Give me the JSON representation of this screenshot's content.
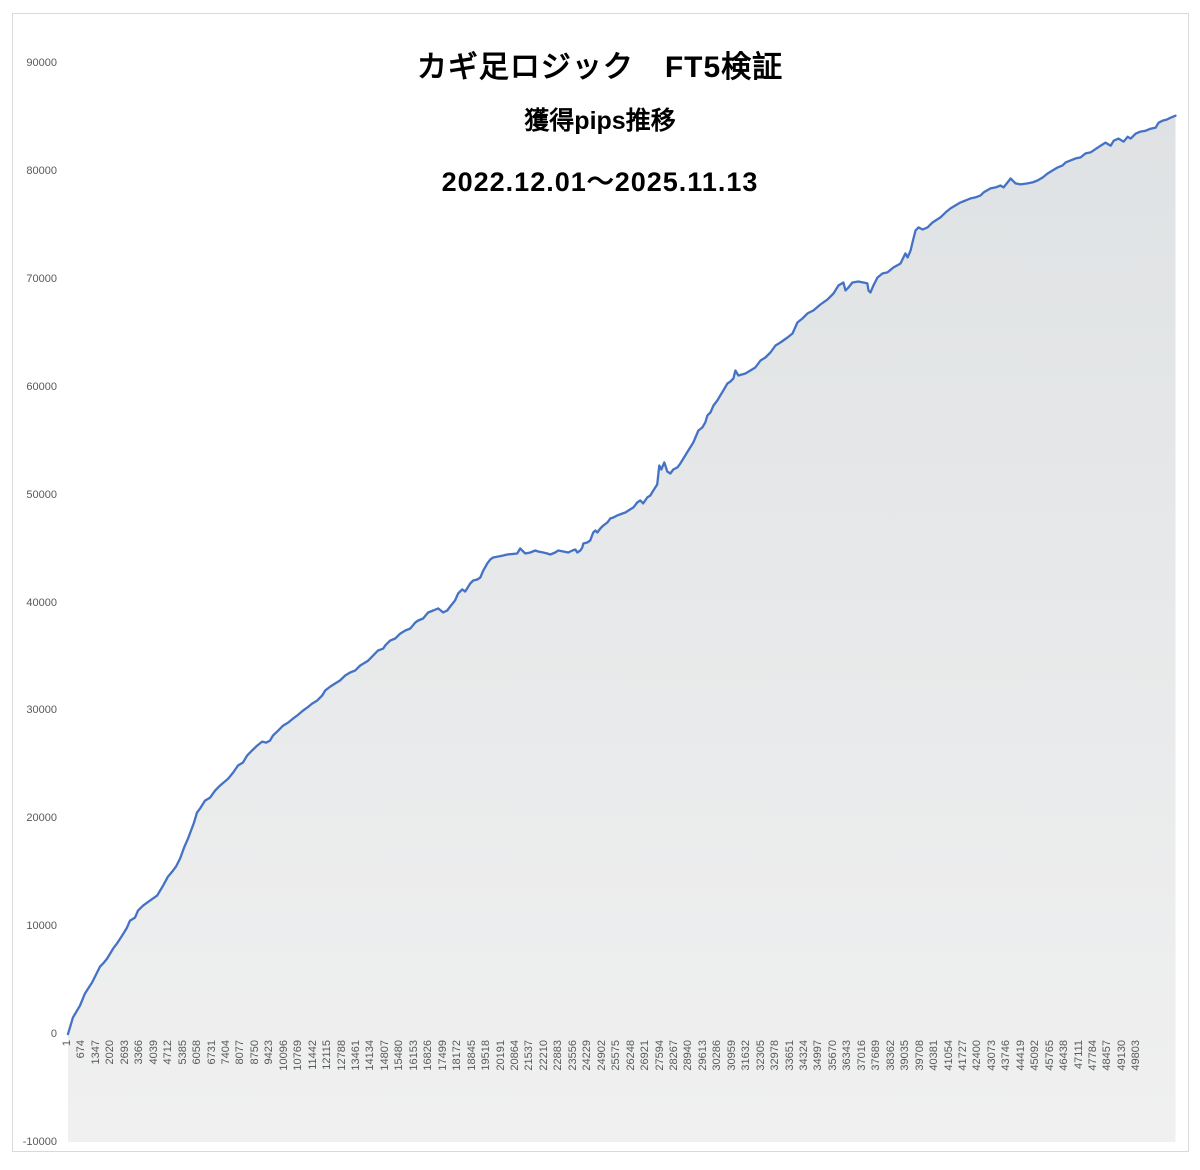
{
  "chart": {
    "title_line1": "カギ足ロジック　FT5検証",
    "title_line2": "獲得pips推移",
    "title_line3": "2022.12.01～2025.11.13"
  },
  "chart_data": {
    "type": "area",
    "title": "カギ足ロジック　FT5検証",
    "subtitle": "獲得pips推移",
    "period": "2022.12.01～2025.11.13",
    "legend": "none",
    "grid": "off",
    "y_axis": {
      "min": -10000,
      "max": 90000,
      "tick_step": 10000,
      "tick_labels": [
        "-10000",
        "0",
        "10000",
        "20000",
        "30000",
        "40000",
        "50000",
        "60000",
        "70000",
        "80000",
        "90000"
      ]
    },
    "x_axis": {
      "first_category": 1,
      "last_visible_label": 49803,
      "label_step": 673,
      "approx_total_categories": 51600,
      "tick_labels": [
        "1",
        "674",
        "1347",
        "2020",
        "2693",
        "3366",
        "4039",
        "4712",
        "5385",
        "6058",
        "6731",
        "7404",
        "8077",
        "8750",
        "9423",
        "10096",
        "10769",
        "11442",
        "12115",
        "12788",
        "13461",
        "14134",
        "14807",
        "15480",
        "16153",
        "16826",
        "17499",
        "18172",
        "18845",
        "19518",
        "20191",
        "20864",
        "21537",
        "22210",
        "22883",
        "23556",
        "24229",
        "24902",
        "25575",
        "26248",
        "26921",
        "27594",
        "28267",
        "28940",
        "29613",
        "30286",
        "30959",
        "31632",
        "32305",
        "32978",
        "33651",
        "34324",
        "34997",
        "35670",
        "36343",
        "37016",
        "37689",
        "38362",
        "39035",
        "39708",
        "40381",
        "41054",
        "41727",
        "42400",
        "43073",
        "43746",
        "44419",
        "45092",
        "45765",
        "46438",
        "47111",
        "47784",
        "48457",
        "49130",
        "49803"
      ]
    },
    "colors": {
      "line": "#4472C4",
      "area_fill_top": "#DFE2E4",
      "area_fill_bottom": "#F0F0F0",
      "axis_text": "#595959",
      "chart_border": "#D9D9D9",
      "title_text": "#000000",
      "background": "#FFFFFF"
    },
    "series": {
      "points": [
        [
          1,
          0
        ],
        [
          230,
          1530
        ],
        [
          560,
          2640
        ],
        [
          790,
          3750
        ],
        [
          1030,
          4500
        ],
        [
          1120,
          4770
        ],
        [
          1350,
          5700
        ],
        [
          1490,
          6260
        ],
        [
          1630,
          6530
        ],
        [
          1820,
          7000
        ],
        [
          1960,
          7460
        ],
        [
          2100,
          7920
        ],
        [
          2280,
          8390
        ],
        [
          2520,
          9130
        ],
        [
          2750,
          9870
        ],
        [
          2890,
          10520
        ],
        [
          3120,
          10800
        ],
        [
          3260,
          11450
        ],
        [
          3500,
          11910
        ],
        [
          3820,
          12370
        ],
        [
          4150,
          12840
        ],
        [
          4430,
          13760
        ],
        [
          4660,
          14600
        ],
        [
          4890,
          15150
        ],
        [
          5030,
          15520
        ],
        [
          5220,
          16270
        ],
        [
          5410,
          17290
        ],
        [
          5590,
          18120
        ],
        [
          5730,
          18860
        ],
        [
          5870,
          19600
        ],
        [
          6010,
          20530
        ],
        [
          6150,
          20900
        ],
        [
          6380,
          21640
        ],
        [
          6620,
          21920
        ],
        [
          6850,
          22570
        ],
        [
          7080,
          23030
        ],
        [
          7460,
          23680
        ],
        [
          7690,
          24240
        ],
        [
          7920,
          24890
        ],
        [
          8150,
          25170
        ],
        [
          8340,
          25810
        ],
        [
          8570,
          26280
        ],
        [
          8810,
          26740
        ],
        [
          9040,
          27110
        ],
        [
          9230,
          27020
        ],
        [
          9410,
          27200
        ],
        [
          9550,
          27670
        ],
        [
          9790,
          28130
        ],
        [
          10020,
          28590
        ],
        [
          10250,
          28870
        ],
        [
          10480,
          29240
        ],
        [
          10670,
          29520
        ],
        [
          10950,
          29990
        ],
        [
          11140,
          30260
        ],
        [
          11370,
          30630
        ],
        [
          11600,
          30910
        ],
        [
          11840,
          31380
        ],
        [
          11980,
          31840
        ],
        [
          12210,
          32210
        ],
        [
          12440,
          32490
        ],
        [
          12670,
          32770
        ],
        [
          12910,
          33230
        ],
        [
          13140,
          33510
        ],
        [
          13370,
          33690
        ],
        [
          13610,
          34160
        ],
        [
          13840,
          34440
        ],
        [
          13980,
          34620
        ],
        [
          14210,
          35080
        ],
        [
          14440,
          35550
        ],
        [
          14680,
          35730
        ],
        [
          14770,
          36010
        ],
        [
          15000,
          36470
        ],
        [
          15240,
          36660
        ],
        [
          15470,
          37120
        ],
        [
          15700,
          37400
        ],
        [
          15940,
          37590
        ],
        [
          16170,
          38140
        ],
        [
          16310,
          38330
        ],
        [
          16540,
          38520
        ],
        [
          16770,
          39070
        ],
        [
          17010,
          39260
        ],
        [
          17240,
          39450
        ],
        [
          17470,
          39080
        ],
        [
          17660,
          39260
        ],
        [
          17800,
          39630
        ],
        [
          18030,
          40190
        ],
        [
          18170,
          40840
        ],
        [
          18360,
          41210
        ],
        [
          18500,
          41020
        ],
        [
          18730,
          41760
        ],
        [
          18870,
          42040
        ],
        [
          19060,
          42130
        ],
        [
          19200,
          42320
        ],
        [
          19340,
          42970
        ],
        [
          19530,
          43620
        ],
        [
          19670,
          43990
        ],
        [
          19800,
          44170
        ],
        [
          20040,
          44260
        ],
        [
          20270,
          44360
        ],
        [
          20460,
          44450
        ],
        [
          20920,
          44540
        ],
        [
          21060,
          45010
        ],
        [
          21200,
          44730
        ],
        [
          21300,
          44540
        ],
        [
          21530,
          44630
        ],
        [
          21760,
          44820
        ],
        [
          21900,
          44730
        ],
        [
          22130,
          44630
        ],
        [
          22320,
          44540
        ],
        [
          22460,
          44450
        ],
        [
          22690,
          44630
        ],
        [
          22830,
          44820
        ],
        [
          23070,
          44730
        ],
        [
          23300,
          44630
        ],
        [
          23490,
          44820
        ],
        [
          23630,
          44910
        ],
        [
          23720,
          44630
        ],
        [
          23860,
          44820
        ],
        [
          23950,
          45100
        ],
        [
          24000,
          45470
        ],
        [
          24180,
          45560
        ],
        [
          24320,
          45750
        ],
        [
          24460,
          46490
        ],
        [
          24560,
          46670
        ],
        [
          24650,
          46490
        ],
        [
          24790,
          46860
        ],
        [
          24930,
          47140
        ],
        [
          25120,
          47420
        ],
        [
          25260,
          47790
        ],
        [
          25400,
          47880
        ],
        [
          25580,
          48070
        ],
        [
          25820,
          48250
        ],
        [
          25960,
          48340
        ],
        [
          26100,
          48530
        ],
        [
          26330,
          48810
        ],
        [
          26510,
          49270
        ],
        [
          26650,
          49460
        ],
        [
          26790,
          49180
        ],
        [
          26980,
          49740
        ],
        [
          27120,
          49920
        ],
        [
          27260,
          50380
        ],
        [
          27440,
          50940
        ],
        [
          27540,
          52700
        ],
        [
          27630,
          52330
        ],
        [
          27770,
          52980
        ],
        [
          27910,
          52140
        ],
        [
          28050,
          51960
        ],
        [
          28190,
          52330
        ],
        [
          28380,
          52520
        ],
        [
          28520,
          52890
        ],
        [
          28750,
          53630
        ],
        [
          28890,
          54090
        ],
        [
          29120,
          54830
        ],
        [
          29360,
          55940
        ],
        [
          29540,
          56220
        ],
        [
          29680,
          56690
        ],
        [
          29780,
          57340
        ],
        [
          29920,
          57610
        ],
        [
          30060,
          58260
        ],
        [
          30240,
          58720
        ],
        [
          30380,
          59190
        ],
        [
          30520,
          59650
        ],
        [
          30710,
          60300
        ],
        [
          30850,
          60480
        ],
        [
          30990,
          60760
        ],
        [
          31080,
          61500
        ],
        [
          31220,
          61040
        ],
        [
          31550,
          61220
        ],
        [
          31780,
          61500
        ],
        [
          32010,
          61780
        ],
        [
          32250,
          62430
        ],
        [
          32480,
          62710
        ],
        [
          32710,
          63170
        ],
        [
          32950,
          63820
        ],
        [
          33180,
          64100
        ],
        [
          33510,
          64560
        ],
        [
          33740,
          64930
        ],
        [
          33970,
          65950
        ],
        [
          34200,
          66320
        ],
        [
          34440,
          66790
        ],
        [
          34720,
          67070
        ],
        [
          35040,
          67620
        ],
        [
          35370,
          68090
        ],
        [
          35650,
          68640
        ],
        [
          35880,
          69380
        ],
        [
          36110,
          69660
        ],
        [
          36210,
          68920
        ],
        [
          36350,
          69200
        ],
        [
          36530,
          69660
        ],
        [
          36810,
          69750
        ],
        [
          37040,
          69660
        ],
        [
          37230,
          69570
        ],
        [
          37280,
          68920
        ],
        [
          37370,
          68730
        ],
        [
          37510,
          69380
        ],
        [
          37700,
          70120
        ],
        [
          37930,
          70490
        ],
        [
          38160,
          70590
        ],
        [
          38440,
          71050
        ],
        [
          38770,
          71420
        ],
        [
          39000,
          72350
        ],
        [
          39100,
          71980
        ],
        [
          39240,
          72630
        ],
        [
          39330,
          73370
        ],
        [
          39470,
          74480
        ],
        [
          39610,
          74760
        ],
        [
          39800,
          74570
        ],
        [
          40030,
          74760
        ],
        [
          40260,
          75220
        ],
        [
          40630,
          75690
        ],
        [
          40870,
          76150
        ],
        [
          41100,
          76520
        ],
        [
          41330,
          76800
        ],
        [
          41570,
          77080
        ],
        [
          41800,
          77260
        ],
        [
          42030,
          77450
        ],
        [
          42260,
          77540
        ],
        [
          42500,
          77730
        ],
        [
          42640,
          78010
        ],
        [
          42960,
          78380
        ],
        [
          43200,
          78470
        ],
        [
          43430,
          78650
        ],
        [
          43570,
          78470
        ],
        [
          43760,
          78930
        ],
        [
          43900,
          79300
        ],
        [
          44130,
          78840
        ],
        [
          44360,
          78750
        ],
        [
          44690,
          78840
        ],
        [
          44920,
          78930
        ],
        [
          45150,
          79110
        ],
        [
          45390,
          79390
        ],
        [
          45620,
          79760
        ],
        [
          45850,
          80040
        ],
        [
          46090,
          80320
        ],
        [
          46320,
          80510
        ],
        [
          46460,
          80790
        ],
        [
          46690,
          80970
        ],
        [
          46930,
          81160
        ],
        [
          47160,
          81250
        ],
        [
          47390,
          81620
        ],
        [
          47620,
          81710
        ],
        [
          47760,
          81900
        ],
        [
          48090,
          82340
        ],
        [
          48320,
          82620
        ],
        [
          48560,
          82340
        ],
        [
          48700,
          82800
        ],
        [
          48930,
          82990
        ],
        [
          49160,
          82710
        ],
        [
          49350,
          83170
        ],
        [
          49490,
          82990
        ],
        [
          49720,
          83450
        ],
        [
          49950,
          83640
        ],
        [
          50190,
          83730
        ],
        [
          50420,
          83910
        ],
        [
          50650,
          84010
        ],
        [
          50790,
          84470
        ],
        [
          50980,
          84660
        ],
        [
          51170,
          84750
        ],
        [
          51350,
          84930
        ],
        [
          51580,
          85120
        ]
      ]
    }
  }
}
